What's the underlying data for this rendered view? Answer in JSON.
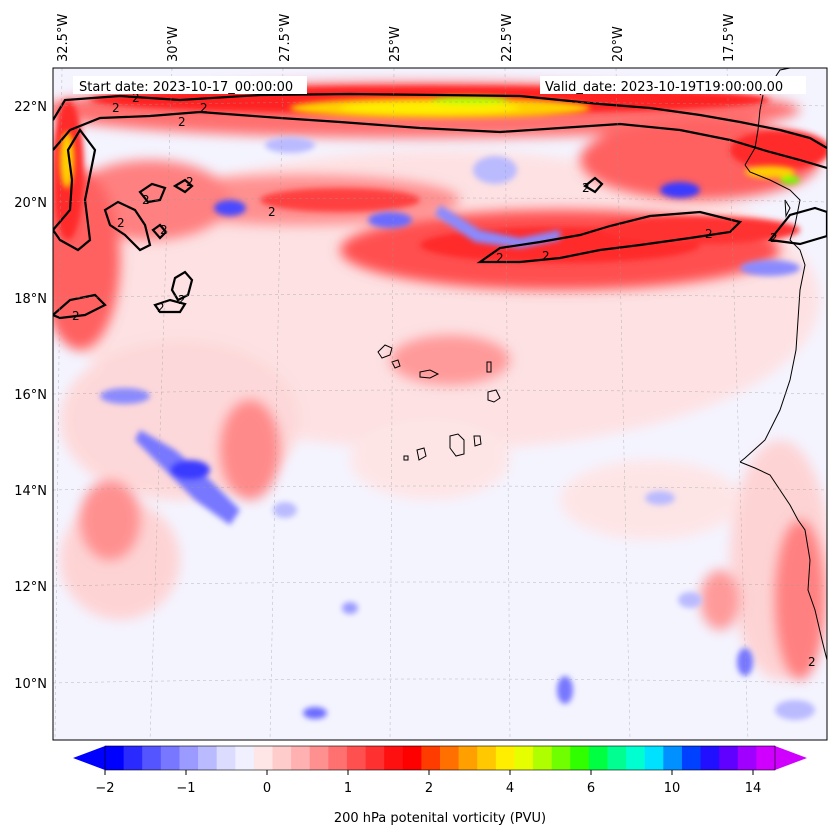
{
  "map": {
    "projection": "map",
    "start_date_label": "Start date: 2023-10-17_00:00:00",
    "valid_date_label": "Valid_date: 2023-10-19T19:00:00.00",
    "lon_labels": [
      "32.5°W",
      "30°W",
      "27.5°W",
      "25°W",
      "22.5°W",
      "20°W",
      "17.5°W"
    ],
    "lat_labels": [
      "22°N",
      "20°N",
      "18°N",
      "16°N",
      "14°N",
      "12°N",
      "10°N"
    ],
    "contour_label": "2",
    "gridlines": "dashed"
  },
  "colorbar": {
    "title": "200 hPa potenital vorticity (PVU)",
    "tick_labels": [
      "−2",
      "−1",
      "0",
      "1",
      "2",
      "4",
      "6",
      "10",
      "14"
    ],
    "colors": [
      "#0000ff",
      "#2a2aff",
      "#5555ff",
      "#7777ff",
      "#9a9aff",
      "#babaff",
      "#dcdcff",
      "#f0f0ff",
      "#ffe6e6",
      "#ffcccc",
      "#ffb0b0",
      "#ff9090",
      "#ff7070",
      "#ff5050",
      "#ff3030",
      "#ff1010",
      "#ff0000",
      "#ff3c00",
      "#ff7000",
      "#ffa000",
      "#ffc800",
      "#ffee00",
      "#e6ff00",
      "#b0ff00",
      "#70ff00",
      "#30ff00",
      "#00ff40",
      "#00ff90",
      "#00ffd0",
      "#00e0ff",
      "#0090ff",
      "#0040ff",
      "#2010ff",
      "#6000ff",
      "#a000ff",
      "#d000ff"
    ]
  },
  "chart_data": {
    "type": "heatmap",
    "variable": "200 hPa potenital vorticity (PVU)",
    "contour_levels": [
      2
    ],
    "color_levels": [
      -2,
      -1,
      0,
      1,
      2,
      4,
      6,
      10,
      14
    ]
  }
}
